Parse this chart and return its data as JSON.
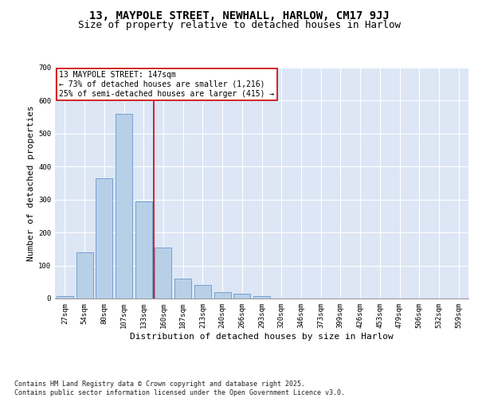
{
  "title1": "13, MAYPOLE STREET, NEWHALL, HARLOW, CM17 9JJ",
  "title2": "Size of property relative to detached houses in Harlow",
  "xlabel": "Distribution of detached houses by size in Harlow",
  "ylabel": "Number of detached properties",
  "categories": [
    "27sqm",
    "54sqm",
    "80sqm",
    "107sqm",
    "133sqm",
    "160sqm",
    "187sqm",
    "213sqm",
    "240sqm",
    "266sqm",
    "293sqm",
    "320sqm",
    "346sqm",
    "373sqm",
    "399sqm",
    "426sqm",
    "453sqm",
    "479sqm",
    "506sqm",
    "532sqm",
    "559sqm"
  ],
  "values": [
    8,
    140,
    365,
    560,
    295,
    155,
    60,
    40,
    20,
    15,
    8,
    0,
    0,
    0,
    0,
    0,
    0,
    0,
    0,
    0,
    0
  ],
  "bar_color": "#b8cfe8",
  "bar_edge_color": "#6699cc",
  "bg_color": "#dce6f5",
  "grid_color": "#ffffff",
  "vline_color": "#cc0000",
  "annotation_box_color": "#cc0000",
  "annotation_text": "13 MAYPOLE STREET: 147sqm\n← 73% of detached houses are smaller (1,216)\n25% of semi-detached houses are larger (415) →",
  "ylim": [
    0,
    700
  ],
  "yticks": [
    0,
    100,
    200,
    300,
    400,
    500,
    600,
    700
  ],
  "footer": "Contains HM Land Registry data © Crown copyright and database right 2025.\nContains public sector information licensed under the Open Government Licence v3.0.",
  "title_fontsize": 10,
  "subtitle_fontsize": 9,
  "tick_fontsize": 6.5,
  "label_fontsize": 8,
  "annotation_fontsize": 7,
  "footer_fontsize": 6
}
